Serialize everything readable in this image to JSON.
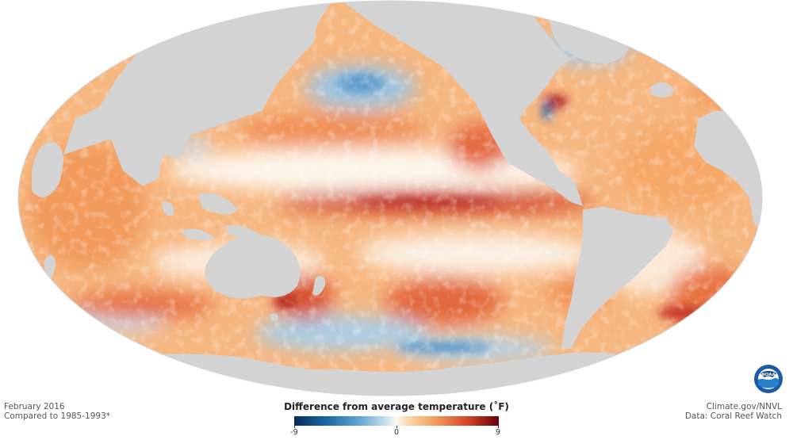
{
  "credits": {
    "date": "February 2016",
    "baseline": "Compared to 1985-1993*",
    "source_site": "Climate.gov/NNVL",
    "data_source": "Data: Coral Reef Watch"
  },
  "legend": {
    "title": "Difference from average temperature (˚F)",
    "ticks": [
      "-9",
      "0",
      "9"
    ],
    "range": [
      -9,
      9
    ],
    "colors": [
      "#062b59",
      "#1d67a8",
      "#62a7d2",
      "#d4e6f1",
      "#fbf8ee",
      "#f9d6a8",
      "#f4a05e",
      "#d8482a",
      "#67000d"
    ]
  },
  "map": {
    "projection": "Mollweide",
    "land_color": "#d3d3d3",
    "ocean_base_color": "#f6b67f"
  },
  "logo": {
    "icon": "noaa-logo-icon",
    "text": "NOAA"
  }
}
